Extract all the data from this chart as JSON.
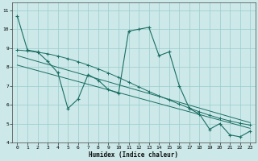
{
  "title": "",
  "xlabel": "Humidex (Indice chaleur)",
  "ylabel": "",
  "bg_color": "#cce8e8",
  "line_color": "#1a6e64",
  "grid_color": "#99cccc",
  "xlim": [
    -0.5,
    23.5
  ],
  "ylim": [
    4,
    11.4
  ],
  "xticks": [
    0,
    1,
    2,
    3,
    4,
    5,
    6,
    7,
    8,
    9,
    10,
    11,
    12,
    13,
    14,
    15,
    16,
    17,
    18,
    19,
    20,
    21,
    22,
    23
  ],
  "yticks": [
    4,
    5,
    6,
    7,
    8,
    9,
    10,
    11
  ],
  "line1_x": [
    0,
    1,
    2,
    3,
    4,
    5,
    6,
    7,
    8,
    9,
    10,
    11,
    12,
    13,
    14,
    15,
    16,
    17,
    18,
    19,
    20,
    21,
    22,
    23
  ],
  "line1_y": [
    10.7,
    8.9,
    8.8,
    8.3,
    7.7,
    5.8,
    6.3,
    7.6,
    7.3,
    6.8,
    6.6,
    9.9,
    10.0,
    10.1,
    8.6,
    8.8,
    7.0,
    5.8,
    5.5,
    4.7,
    5.0,
    4.4,
    4.3,
    4.6
  ],
  "line2_x": [
    0,
    1,
    2,
    3,
    4,
    5,
    6,
    7,
    8,
    9,
    10,
    11,
    12,
    13,
    14,
    15,
    16,
    17,
    18,
    19,
    20,
    21,
    22,
    23
  ],
  "line2_y": [
    8.9,
    8.85,
    8.78,
    8.7,
    8.58,
    8.44,
    8.28,
    8.1,
    7.9,
    7.68,
    7.45,
    7.2,
    6.95,
    6.7,
    6.47,
    6.25,
    6.03,
    5.82,
    5.62,
    5.44,
    5.28,
    5.14,
    5.02,
    4.92
  ],
  "line3_x": [
    0,
    23
  ],
  "line3_y": [
    8.6,
    5.05
  ],
  "line4_x": [
    0,
    23
  ],
  "line4_y": [
    8.1,
    4.75
  ]
}
